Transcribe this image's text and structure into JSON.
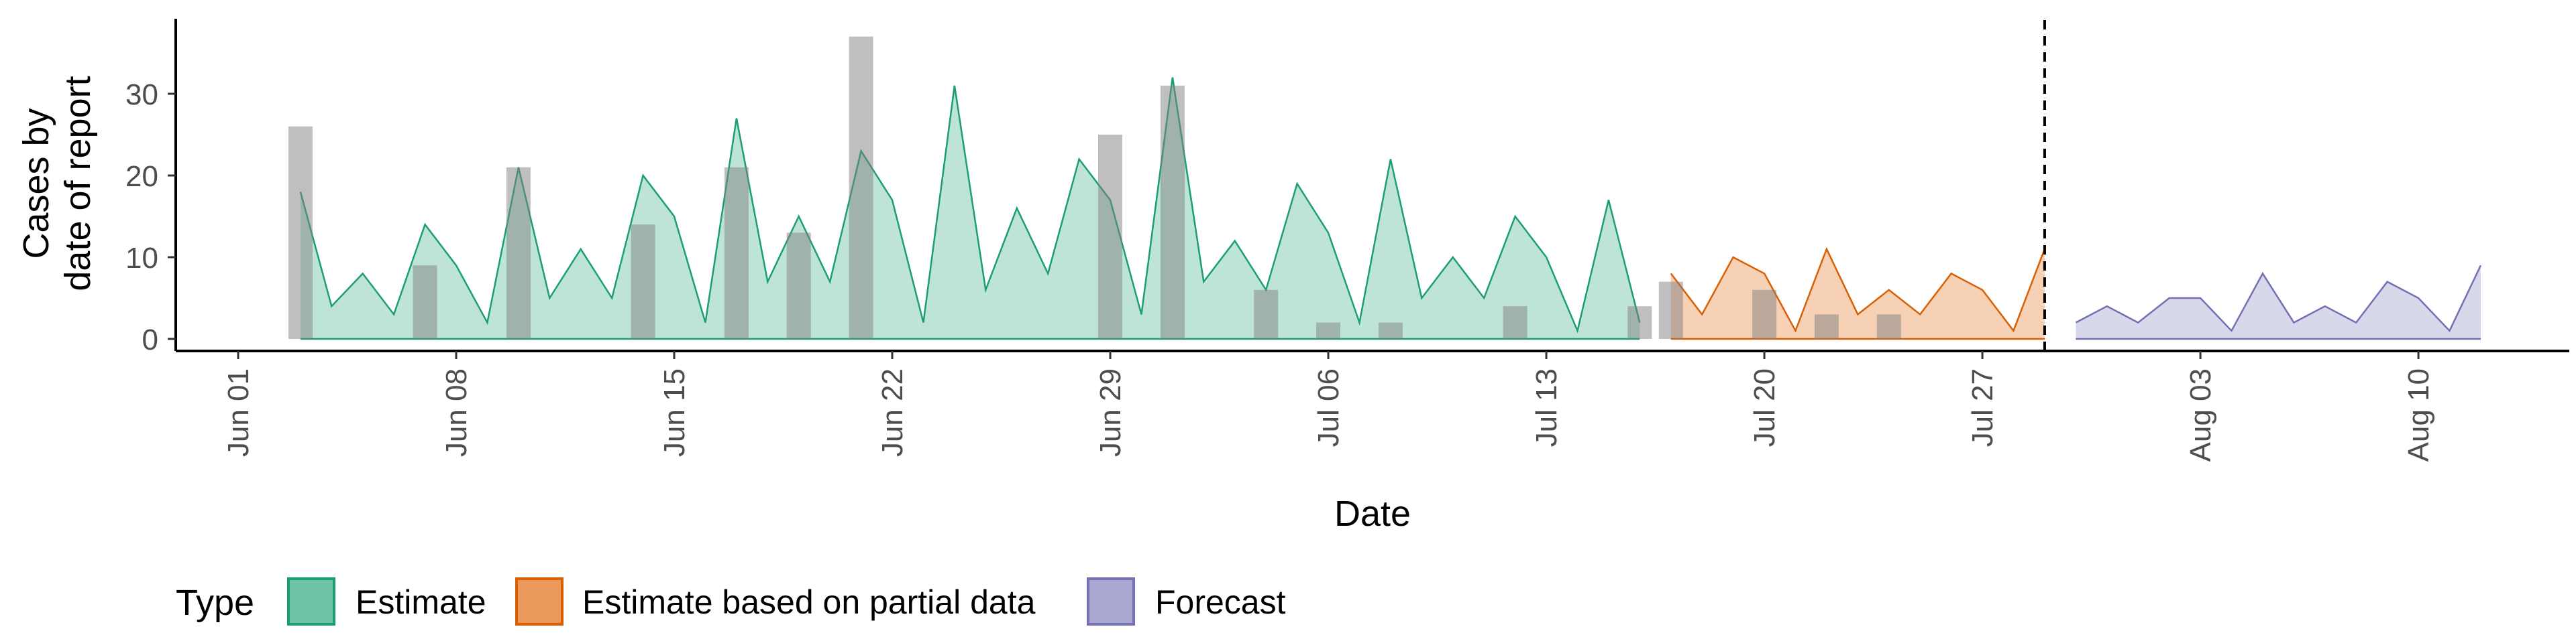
{
  "chart_data": {
    "type": "area",
    "title": "",
    "xlabel": "Date",
    "ylabel_lines": [
      "Cases by",
      "date of report"
    ],
    "x_start": "2020-06-01",
    "x_ticks": [
      "Jun 01",
      "Jun 08",
      "Jun 15",
      "Jun 22",
      "Jun 29",
      "Jul 06",
      "Jul 13",
      "Jul 20",
      "Jul 27",
      "Aug 03",
      "Aug 10"
    ],
    "y_ticks": [
      0,
      10,
      20,
      30
    ],
    "ylim": [
      -1.9,
      39
    ],
    "grid": false,
    "legend_title": "Type",
    "legend_position": "bottom",
    "reference_line": {
      "date": "2020-07-29",
      "style": "dashed"
    },
    "colors": {
      "Estimate": {
        "fill": "#6FC3A6",
        "line": "#1B9E77"
      },
      "Estimate based on partial data": {
        "fill": "#EC9A5C",
        "line": "#D95F02"
      },
      "Forecast": {
        "fill": "#A9A8D3",
        "line": "#7570B3"
      },
      "reported_bars": "#808080"
    },
    "reported_cases": [
      {
        "date": "2020-06-03",
        "value": 26
      },
      {
        "date": "2020-06-07",
        "value": 9
      },
      {
        "date": "2020-06-10",
        "value": 21
      },
      {
        "date": "2020-06-14",
        "value": 14
      },
      {
        "date": "2020-06-17",
        "value": 21
      },
      {
        "date": "2020-06-19",
        "value": 13
      },
      {
        "date": "2020-06-21",
        "value": 37
      },
      {
        "date": "2020-06-29",
        "value": 25
      },
      {
        "date": "2020-07-01",
        "value": 31
      },
      {
        "date": "2020-07-04",
        "value": 6
      },
      {
        "date": "2020-07-06",
        "value": 2
      },
      {
        "date": "2020-07-08",
        "value": 2
      },
      {
        "date": "2020-07-12",
        "value": 4
      },
      {
        "date": "2020-07-16",
        "value": 4
      },
      {
        "date": "2020-07-17",
        "value": 7
      },
      {
        "date": "2020-07-20",
        "value": 6
      },
      {
        "date": "2020-07-22",
        "value": 3
      },
      {
        "date": "2020-07-24",
        "value": 3
      }
    ],
    "series": [
      {
        "name": "Estimate",
        "start_date": "2020-06-03",
        "values": [
          18,
          4,
          8,
          3,
          14,
          9,
          2,
          21,
          5,
          11,
          5,
          20,
          15,
          2,
          27,
          7,
          15,
          7,
          23,
          17,
          2,
          31,
          6,
          16,
          8,
          22,
          17,
          3,
          32,
          7,
          12,
          6,
          19,
          13,
          2,
          22,
          5,
          10,
          5,
          15,
          10,
          1,
          17,
          2
        ]
      },
      {
        "name": "Estimate based on partial data",
        "start_date": "2020-07-17",
        "values": [
          8,
          3,
          10,
          8,
          1,
          11,
          3,
          6,
          3,
          8,
          6,
          1,
          11
        ]
      },
      {
        "name": "Forecast",
        "start_date": "2020-07-30",
        "values": [
          2,
          4,
          2,
          5,
          5,
          1,
          8,
          2,
          4,
          2,
          7,
          5,
          1,
          9
        ]
      }
    ]
  }
}
